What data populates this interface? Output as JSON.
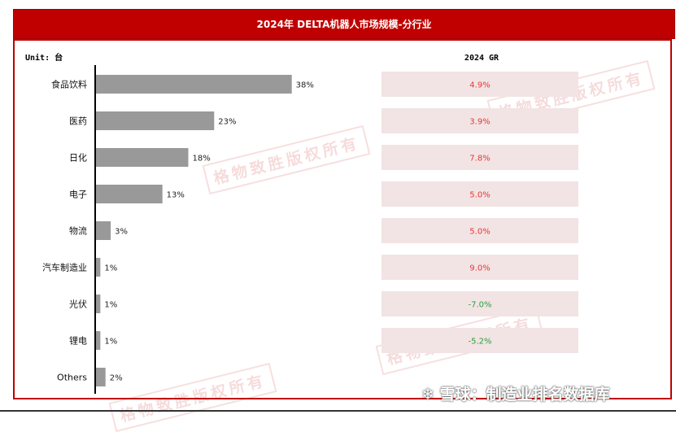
{
  "title": "2024年 DELTA机器人市场规模-分行业",
  "unit_label": "Unit: 台",
  "gr_header": "2024 GR",
  "watermark_text": "格物致胜版权所有",
  "footer_text": "雪球：制造业排名数据库",
  "colors": {
    "title_bg": "#c00000",
    "bar": "#999999",
    "gr_box": "#f2e4e4",
    "positive_text": "#e53935",
    "negative_text": "#2e9e3e"
  },
  "chart_data": {
    "type": "bar",
    "orientation": "horizontal",
    "categories": [
      "食品饮料",
      "医药",
      "日化",
      "电子",
      "物流",
      "汽车制造业",
      "光伏",
      "锂电",
      "Others"
    ],
    "values": [
      38,
      23,
      18,
      13,
      3,
      1,
      1,
      1,
      2
    ],
    "value_labels": [
      "38%",
      "23%",
      "18%",
      "13%",
      "3%",
      "1%",
      "1%",
      "1%",
      "2%"
    ],
    "unit": "%",
    "growth_rates": [
      "4.9%",
      "3.9%",
      "7.8%",
      "5.0%",
      "5.0%",
      "9.0%",
      "-7.0%",
      "-5.2%"
    ],
    "growth_values": [
      4.9,
      3.9,
      7.8,
      5.0,
      5.0,
      9.0,
      -7.0,
      -5.2
    ]
  }
}
